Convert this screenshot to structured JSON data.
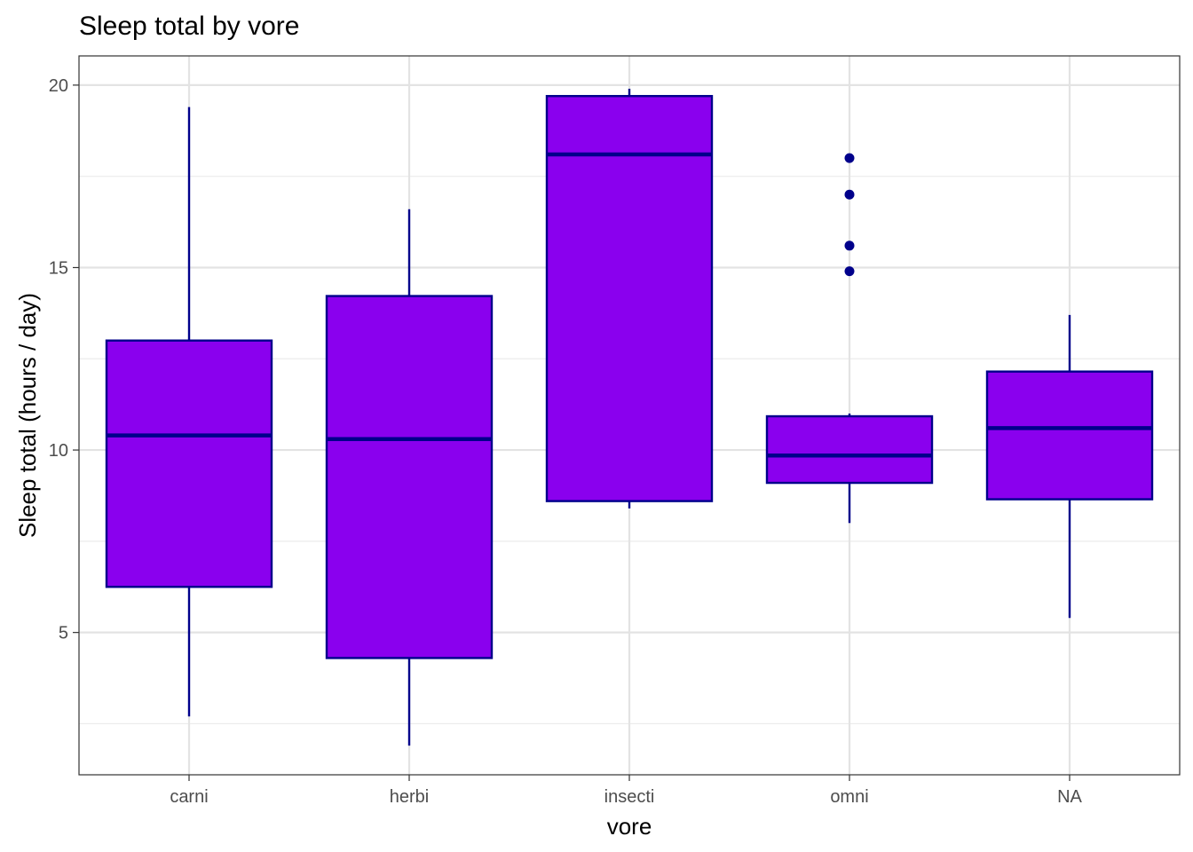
{
  "chart_data": {
    "type": "boxplot",
    "title": "Sleep total by vore",
    "xlabel": "vore",
    "ylabel": "Sleep total (hours / day)",
    "categories": [
      "carni",
      "herbi",
      "insecti",
      "omni",
      "NA"
    ],
    "ylim": [
      1.1,
      20.8
    ],
    "y_ticks": [
      5,
      10,
      15,
      20
    ],
    "y_minor_ticks": [
      2.5,
      7.5,
      12.5,
      17.5
    ],
    "grid": true,
    "fill_color": "#8A00EE",
    "line_color": "#00008B",
    "boxes": [
      {
        "category": "carni",
        "lower_whisker": 2.7,
        "q1": 6.25,
        "median": 10.4,
        "q3": 13.0,
        "upper_whisker": 19.4,
        "outliers": []
      },
      {
        "category": "herbi",
        "lower_whisker": 1.9,
        "q1": 4.3,
        "median": 10.3,
        "q3": 14.22,
        "upper_whisker": 16.6,
        "outliers": []
      },
      {
        "category": "insecti",
        "lower_whisker": 8.4,
        "q1": 8.6,
        "median": 18.1,
        "q3": 19.7,
        "upper_whisker": 19.9,
        "outliers": []
      },
      {
        "category": "omni",
        "lower_whisker": 8.0,
        "q1": 9.1,
        "median": 9.85,
        "q3": 10.925,
        "upper_whisker": 11.0,
        "outliers": [
          14.9,
          15.6,
          17.0,
          18.0
        ]
      },
      {
        "category": "NA",
        "lower_whisker": 5.4,
        "q1": 8.65,
        "median": 10.6,
        "q3": 12.15,
        "upper_whisker": 13.7,
        "outliers": []
      }
    ]
  }
}
